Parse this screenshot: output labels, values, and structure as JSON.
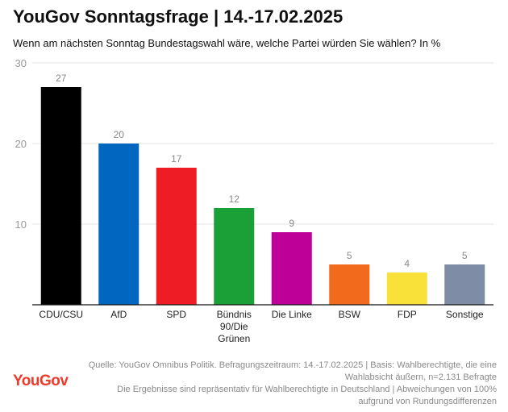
{
  "header": {
    "title": "YouGov Sonntagsfrage | 14.-17.02.2025",
    "subtitle": "Wenn am nächsten Sonntag Bundestagswahl wäre, welche Partei würden Sie wählen? In %"
  },
  "chart_data": {
    "type": "bar",
    "categories": [
      [
        "CDU/CSU"
      ],
      [
        "AfD"
      ],
      [
        "SPD"
      ],
      [
        "Bündnis",
        "90/Die",
        "Grünen"
      ],
      [
        "Die Linke"
      ],
      [
        "BSW"
      ],
      [
        "FDP"
      ],
      [
        "Sonstige"
      ]
    ],
    "values": [
      27,
      20,
      17,
      12,
      9,
      5,
      4,
      5
    ],
    "colors": [
      "#000000",
      "#0066c0",
      "#ee1c25",
      "#1aa037",
      "#be0099",
      "#f26b1d",
      "#f9e13a",
      "#7f8ca6"
    ],
    "ylim": [
      0,
      30
    ],
    "yticks": [
      10,
      20,
      30
    ],
    "grid": true,
    "value_labels": true
  },
  "footer": {
    "logo": "YouGov",
    "source_lines": [
      "Quelle: YouGov Omnibus Politik. Befragungszeitraum: 14.-17.02.2025 | Basis: Wahlberechtigte, die eine",
      "Wahlabsicht äußern, n=2.131 Befragte",
      "Die Ergebnisse sind repräsentativ für Wahlberechtigte in Deutschland | Abweichungen von 100%",
      "aufgrund von Rundungsdifferenzen"
    ]
  }
}
